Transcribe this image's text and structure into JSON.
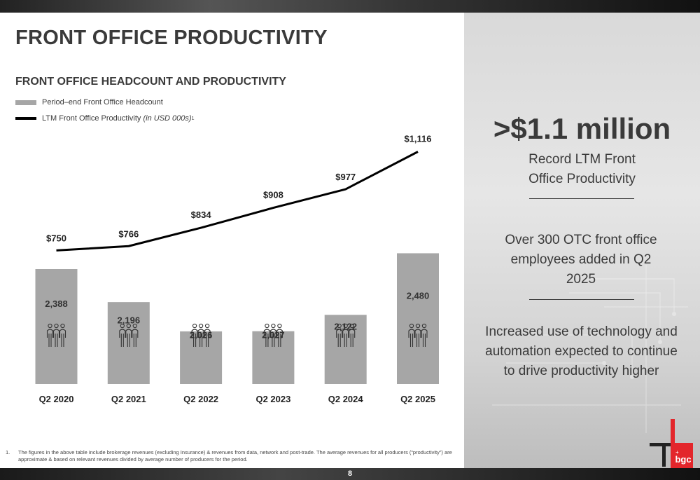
{
  "page": {
    "title": "FRONT OFFICE PRODUCTIVITY",
    "page_number": "8"
  },
  "legend": {
    "bar_label": "Period–end Front Office Headcount",
    "line_label": "LTM Front Office Productivity",
    "line_label_unit": "(in USD 000s)",
    "line_label_note": "1"
  },
  "highlights": {
    "headline": ">$1.1 million",
    "headline_caption": "Record LTM Front Office Productivity",
    "point_2": "Over 300 OTC front office employees added in Q2 2025",
    "point_3": "Increased use of technology and automation expected to continue to drive productivity higher"
  },
  "footnote": {
    "number": "1.",
    "text": "The figures in the above table include brokerage revenues (excluding Insurance) & revenues from data, network and post-trade. The average revenues for all producers (“productivity”) are approximate & based on relevant revenues divided by average number of producers for the period."
  },
  "brand": {
    "logo_text": "bgc",
    "accent": "#e3262b"
  },
  "colors": {
    "bar": "#a6a6a6",
    "line": "#000000",
    "text": "#3a3a3a"
  },
  "chart_data": {
    "type": "bar",
    "title": "FRONT OFFICE HEADCOUNT AND PRODUCTIVITY",
    "categories": [
      "Q2 2020",
      "Q2 2021",
      "Q2 2022",
      "Q2 2023",
      "Q2 2024",
      "Q2 2025"
    ],
    "series": [
      {
        "name": "Period–end Front Office Headcount",
        "type": "bar",
        "values": [
          2388,
          2196,
          2026,
          2027,
          2122,
          2480
        ],
        "labels": [
          "2,388",
          "2,196",
          "2,026",
          "2,027",
          "2,122",
          "2,480"
        ]
      },
      {
        "name": "LTM Front Office Productivity (in USD 000s)",
        "type": "line",
        "values": [
          750,
          766,
          834,
          908,
          977,
          1116
        ],
        "labels": [
          "$750",
          "$766",
          "$834",
          "$908",
          "$977",
          "$1,116"
        ]
      }
    ],
    "icon": "people-icon",
    "grid": false,
    "legend_position": "top-left"
  }
}
